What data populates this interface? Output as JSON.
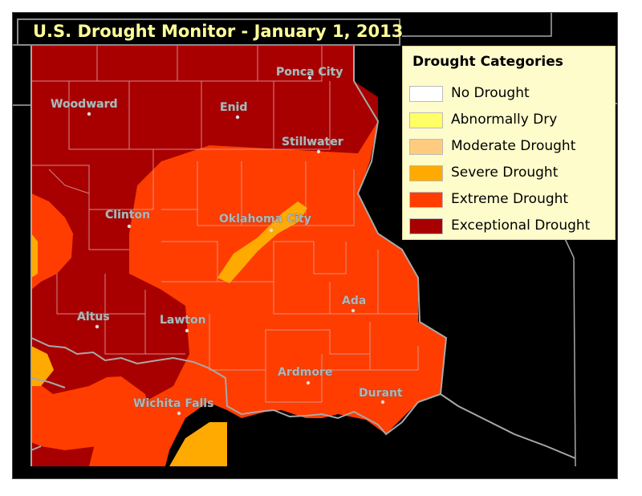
{
  "title": "U.S. Drought Monitor - January 1, 2013",
  "legend": {
    "title": "Drought Categories",
    "items": [
      {
        "label": "No Drought",
        "color": "#ffffff"
      },
      {
        "label": "Abnormally Dry",
        "color": "#ffff66"
      },
      {
        "label": "Moderate Drought",
        "color": "#ffcc7f"
      },
      {
        "label": "Severe Drought",
        "color": "#ffaa00"
      },
      {
        "label": "Extreme Drought",
        "color": "#ff3d00"
      },
      {
        "label": "Exceptional Drought",
        "color": "#a80000"
      }
    ]
  },
  "cities": [
    {
      "name": "Ponca City"
    },
    {
      "name": "Woodward"
    },
    {
      "name": "Enid"
    },
    {
      "name": "Stillwater"
    },
    {
      "name": "Clinton"
    },
    {
      "name": "Oklahoma City"
    },
    {
      "name": "Altus"
    },
    {
      "name": "Lawton"
    },
    {
      "name": "Ada"
    },
    {
      "name": "Ardmore"
    },
    {
      "name": "Durant"
    },
    {
      "name": "Wichita Falls"
    }
  ],
  "colors": {
    "background": "#000000",
    "county_line": "#d9a0a0",
    "state_border": "#a8a8a8",
    "title_text": "#ffff99",
    "legend_background": "#fffccc"
  }
}
